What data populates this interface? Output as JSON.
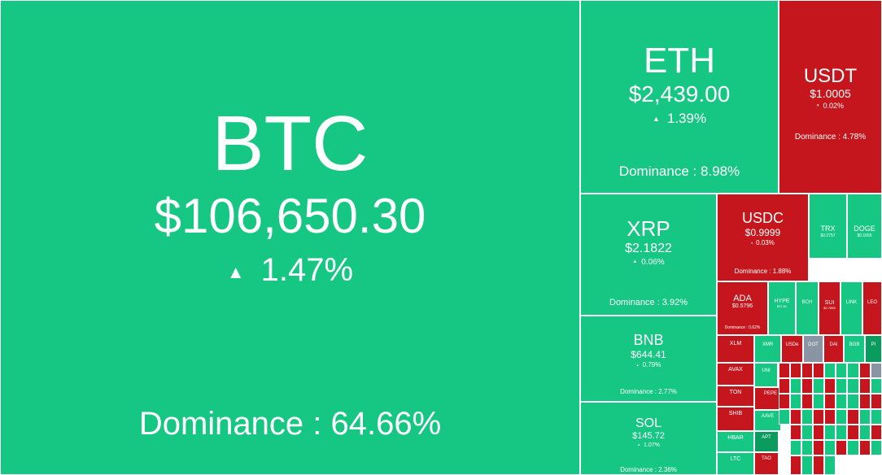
{
  "tiles": [
    {
      "symbol": "BTC",
      "price": "$106,650.30",
      "change": "1.47%",
      "direction": "up",
      "dominance": "Dominance : 64.66%"
    },
    {
      "symbol": "ETH",
      "price": "$2,439.00",
      "change": "1.39%",
      "direction": "up",
      "dominance": "Dominance : 8.98%"
    },
    {
      "symbol": "USDT",
      "price": "$1.0005",
      "change": "0.02%",
      "direction": "down",
      "dominance": "Dominance : 4.78%"
    },
    {
      "symbol": "XRP",
      "price": "$2.1822",
      "change": "0.06%",
      "direction": "up",
      "dominance": "Dominance : 3.92%"
    },
    {
      "symbol": "BNB",
      "price": "$644.41",
      "change": "0.79%",
      "direction": "up",
      "dominance": "Dominance : 2.77%"
    },
    {
      "symbol": "SOL",
      "price": "$145.72",
      "change": "1.07%",
      "direction": "up",
      "dominance": "Dominance : 2.36%"
    },
    {
      "symbol": "USDC",
      "price": "$0.9999",
      "change": "0.03%",
      "direction": "down",
      "dominance": "Dominance : 1.88%"
    },
    {
      "symbol": "TRX",
      "price": "$0.2757",
      "change": "",
      "direction": "up",
      "dominance": ""
    },
    {
      "symbol": "DOGE",
      "price": "$0.1655",
      "change": "",
      "direction": "up",
      "dominance": ""
    },
    {
      "symbol": "ADA",
      "price": "$0.5796",
      "change": "",
      "direction": "down",
      "dominance": "Dominance : 0.62%"
    },
    {
      "symbol": "HYPE",
      "price": "$37.81",
      "change": "",
      "direction": "up",
      "dominance": ""
    },
    {
      "symbol": "BCH",
      "price": "",
      "change": "",
      "direction": "up",
      "dominance": ""
    },
    {
      "symbol": "SUI",
      "price": "$2.7665",
      "change": "",
      "direction": "down",
      "dominance": ""
    },
    {
      "symbol": "LINK",
      "price": "",
      "change": "",
      "direction": "up",
      "dominance": ""
    },
    {
      "symbol": "LEO",
      "price": "",
      "change": "",
      "direction": "down",
      "dominance": ""
    },
    {
      "symbol": "XLM",
      "price": "",
      "change": "",
      "direction": "down",
      "dominance": ""
    },
    {
      "symbol": "AVAX",
      "price": "",
      "change": "",
      "direction": "down",
      "dominance": ""
    },
    {
      "symbol": "TON",
      "price": "",
      "change": "",
      "direction": "down",
      "dominance": ""
    },
    {
      "symbol": "SHIB",
      "price": "",
      "change": "",
      "direction": "down",
      "dominance": ""
    },
    {
      "symbol": "HBAR",
      "price": "",
      "change": "",
      "direction": "up",
      "dominance": ""
    },
    {
      "symbol": "LTC",
      "price": "",
      "change": "",
      "direction": "up",
      "dominance": ""
    },
    {
      "symbol": "XMR",
      "price": "",
      "change": "",
      "direction": "up",
      "dominance": ""
    },
    {
      "symbol": "USDe",
      "price": "",
      "change": "",
      "direction": "down",
      "dominance": ""
    },
    {
      "symbol": "DOT",
      "price": "",
      "change": "",
      "direction": "flat",
      "dominance": ""
    },
    {
      "symbol": "DAI",
      "price": "",
      "change": "",
      "direction": "down",
      "dominance": ""
    },
    {
      "symbol": "BGB",
      "price": "",
      "change": "",
      "direction": "up",
      "dominance": ""
    },
    {
      "symbol": "PI",
      "price": "",
      "change": "",
      "direction": "dark",
      "dominance": ""
    },
    {
      "symbol": "UNI",
      "price": "",
      "change": "",
      "direction": "up",
      "dominance": ""
    },
    {
      "symbol": "PEPE",
      "price": "",
      "change": "",
      "direction": "down",
      "dominance": ""
    },
    {
      "symbol": "AAVE",
      "price": "",
      "change": "",
      "direction": "up",
      "dominance": ""
    },
    {
      "symbol": "APT",
      "price": "",
      "change": "",
      "direction": "dark",
      "dominance": ""
    },
    {
      "symbol": "TAO",
      "price": "",
      "change": "",
      "direction": "down",
      "dominance": ""
    }
  ],
  "fillers": [
    {
      "direction": "down"
    },
    {
      "direction": "down"
    },
    {
      "direction": "down"
    },
    {
      "direction": "down"
    },
    {
      "direction": "up"
    },
    {
      "direction": "up"
    },
    {
      "direction": "up"
    },
    {
      "direction": "down"
    },
    {
      "direction": "flat"
    },
    {
      "direction": "down"
    },
    {
      "direction": "up"
    },
    {
      "direction": "down"
    },
    {
      "direction": "up"
    },
    {
      "direction": "down"
    },
    {
      "direction": "up"
    },
    {
      "direction": "up"
    },
    {
      "direction": "down"
    },
    {
      "direction": "up"
    },
    {
      "direction": "down"
    },
    {
      "direction": "up"
    },
    {
      "direction": "down"
    },
    {
      "direction": "up"
    },
    {
      "direction": "down"
    },
    {
      "direction": "up"
    },
    {
      "direction": "up"
    },
    {
      "direction": "down"
    },
    {
      "direction": "down"
    },
    {
      "direction": "up"
    },
    {
      "direction": "down"
    },
    {
      "direction": "up"
    },
    {
      "direction": "down"
    },
    {
      "direction": "down"
    },
    {
      "direction": "up"
    },
    {
      "direction": "down"
    },
    {
      "direction": "up"
    },
    {
      "direction": "up"
    },
    {
      "direction": "down"
    },
    {
      "direction": "up"
    },
    {
      "direction": "down"
    },
    {
      "direction": "up"
    },
    {
      "direction": "up"
    },
    {
      "direction": "down"
    },
    {
      "direction": "up"
    },
    {
      "direction": "down"
    },
    {
      "direction": "up"
    },
    {
      "direction": "up"
    },
    {
      "direction": "down"
    },
    {
      "direction": "up"
    },
    {
      "direction": "down"
    },
    {
      "direction": "up"
    },
    {
      "direction": "down"
    },
    {
      "direction": "up"
    },
    {
      "direction": "down"
    },
    {
      "direction": "up"
    },
    {
      "direction": "down"
    },
    {
      "direction": "up"
    }
  ],
  "colors": {
    "up": "#16c784",
    "down": "#c4161c",
    "flat": "#8a94a3",
    "dark": "#0a9b5f"
  },
  "icons": {
    "up": "up-arrow-icon",
    "down": "down-arrow-icon"
  }
}
